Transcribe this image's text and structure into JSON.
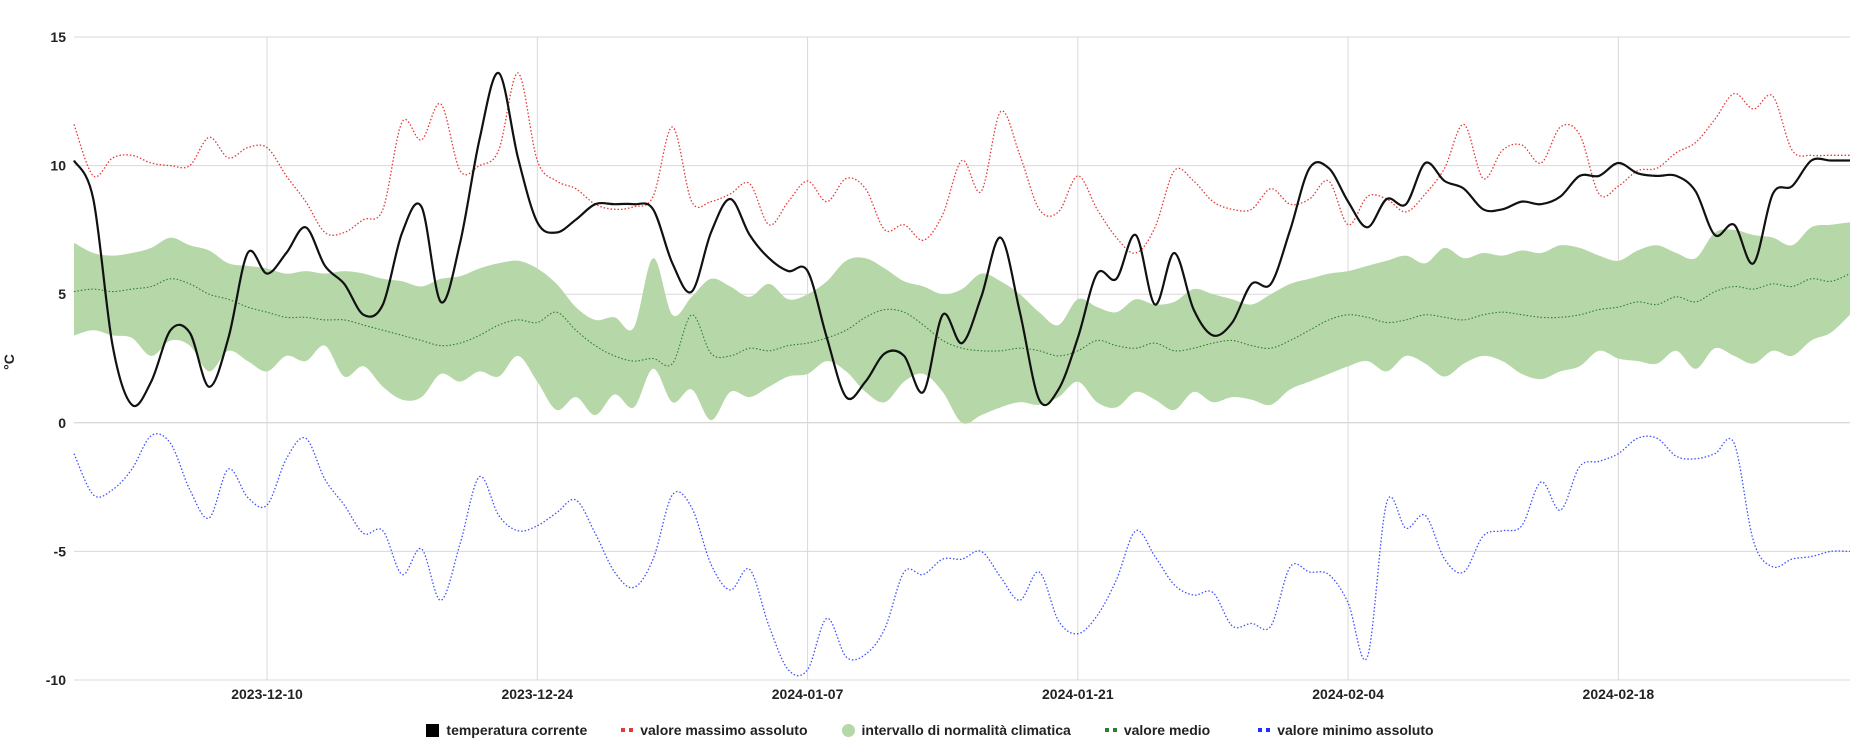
{
  "chart_data": {
    "type": "line",
    "title": "",
    "xlabel": "",
    "ylabel": "°C",
    "ylim": [
      -10,
      15
    ],
    "yticks": [
      -10,
      -5,
      0,
      5,
      10,
      15
    ],
    "ytick_labels": [
      "-10",
      "-5",
      "0",
      "5",
      "10",
      "15"
    ],
    "xlim": [
      "2023-11-30",
      "2024-03-01"
    ],
    "xticks": [
      "2023-12-10",
      "2023-12-24",
      "2024-01-07",
      "2024-01-21",
      "2024-02-04",
      "2024-02-18"
    ],
    "grid": true,
    "legend_position": "bottom",
    "x": [
      "2023-11-30",
      "2023-12-01",
      "2023-12-02",
      "2023-12-03",
      "2023-12-04",
      "2023-12-05",
      "2023-12-06",
      "2023-12-07",
      "2023-12-08",
      "2023-12-09",
      "2023-12-10",
      "2023-12-11",
      "2023-12-12",
      "2023-12-13",
      "2023-12-14",
      "2023-12-15",
      "2023-12-16",
      "2023-12-17",
      "2023-12-18",
      "2023-12-19",
      "2023-12-20",
      "2023-12-21",
      "2023-12-22",
      "2023-12-23",
      "2023-12-24",
      "2023-12-25",
      "2023-12-26",
      "2023-12-27",
      "2023-12-28",
      "2023-12-29",
      "2023-12-30",
      "2023-12-31",
      "2024-01-01",
      "2024-01-02",
      "2024-01-03",
      "2024-01-04",
      "2024-01-05",
      "2024-01-06",
      "2024-01-07",
      "2024-01-08",
      "2024-01-09",
      "2024-01-10",
      "2024-01-11",
      "2024-01-12",
      "2024-01-13",
      "2024-01-14",
      "2024-01-15",
      "2024-01-16",
      "2024-01-17",
      "2024-01-18",
      "2024-01-19",
      "2024-01-20",
      "2024-01-21",
      "2024-01-22",
      "2024-01-23",
      "2024-01-24",
      "2024-01-25",
      "2024-01-26",
      "2024-01-27",
      "2024-01-28",
      "2024-01-29",
      "2024-01-30",
      "2024-01-31",
      "2024-02-01",
      "2024-02-02",
      "2024-02-03",
      "2024-02-04",
      "2024-02-05",
      "2024-02-06",
      "2024-02-07",
      "2024-02-08",
      "2024-02-09",
      "2024-02-10",
      "2024-02-11",
      "2024-02-12",
      "2024-02-13",
      "2024-02-14",
      "2024-02-15",
      "2024-02-16",
      "2024-02-17",
      "2024-02-18",
      "2024-02-19",
      "2024-02-20",
      "2024-02-21",
      "2024-02-22",
      "2024-02-23",
      "2024-02-24",
      "2024-02-25",
      "2024-02-26",
      "2024-02-27",
      "2024-02-28",
      "2024-02-29",
      "2024-03-01"
    ],
    "series": [
      {
        "name": "intervallo di normalità climatica",
        "style": "band",
        "color": "#b6d7a8",
        "low": [
          3.4,
          3.6,
          3.4,
          3.3,
          2.6,
          3.2,
          3.0,
          2.0,
          2.8,
          2.4,
          2.0,
          2.6,
          2.4,
          3.0,
          1.8,
          2.2,
          1.4,
          0.9,
          1.0,
          1.9,
          1.6,
          2.0,
          1.8,
          2.6,
          1.6,
          0.5,
          1.0,
          0.3,
          1.1,
          0.6,
          2.1,
          0.8,
          1.3,
          0.1,
          1.2,
          1.0,
          1.4,
          1.8,
          1.9,
          2.4,
          2.0,
          1.2,
          0.8,
          1.6,
          1.9,
          1.2,
          0.0,
          0.3,
          0.6,
          0.8,
          0.7,
          1.0,
          1.6,
          0.8,
          0.6,
          1.2,
          0.9,
          0.5,
          1.2,
          0.8,
          1.0,
          0.9,
          0.7,
          1.3,
          1.6,
          1.9,
          2.2,
          2.4,
          2.0,
          2.6,
          2.3,
          1.8,
          2.3,
          2.6,
          2.4,
          1.9,
          1.7,
          2.0,
          2.2,
          2.8,
          2.5,
          2.4,
          2.3,
          2.8,
          2.1,
          2.9,
          2.6,
          2.3,
          2.8,
          2.6,
          3.2,
          3.5,
          4.2
        ],
        "high": [
          7.0,
          6.6,
          6.5,
          6.6,
          6.8,
          7.2,
          6.9,
          6.7,
          6.2,
          6.1,
          6.0,
          5.8,
          5.9,
          5.8,
          5.9,
          5.8,
          5.6,
          5.5,
          5.3,
          5.6,
          5.7,
          6.0,
          6.2,
          6.3,
          6.0,
          5.4,
          4.5,
          4.0,
          4.1,
          3.7,
          6.4,
          4.2,
          4.9,
          5.6,
          5.3,
          4.9,
          5.4,
          4.8,
          5.0,
          5.5,
          6.3,
          6.4,
          6.0,
          5.5,
          5.3,
          5.0,
          5.2,
          5.8,
          5.5,
          5.0,
          4.3,
          3.8,
          4.8,
          4.5,
          4.3,
          4.8,
          4.6,
          4.7,
          5.2,
          5.0,
          4.8,
          4.6,
          5.0,
          5.4,
          5.6,
          5.8,
          5.9,
          6.1,
          6.3,
          6.5,
          6.2,
          6.8,
          6.4,
          6.6,
          6.5,
          6.7,
          6.6,
          6.9,
          6.8,
          6.5,
          6.3,
          6.7,
          6.9,
          6.6,
          6.4,
          7.4,
          7.5,
          7.3,
          7.2,
          6.9,
          7.6,
          7.7,
          7.8
        ],
        "mean": [
          5.1,
          5.2,
          5.1,
          5.2,
          5.3,
          5.6,
          5.4,
          5.0,
          4.8,
          4.5,
          4.3,
          4.1,
          4.1,
          4.0,
          4.0,
          3.8,
          3.6,
          3.4,
          3.2,
          3.0,
          3.1,
          3.4,
          3.8,
          4.0,
          3.9,
          4.3,
          3.6,
          3.0,
          2.6,
          2.4,
          2.5,
          2.3,
          4.2,
          2.7,
          2.6,
          2.9,
          2.8,
          3.0,
          3.1,
          3.3,
          3.6,
          4.1,
          4.4,
          4.3,
          3.8,
          3.2,
          2.9,
          2.8,
          2.8,
          2.9,
          2.8,
          2.6,
          2.8,
          3.2,
          3.0,
          2.9,
          3.1,
          2.8,
          2.9,
          3.1,
          3.2,
          3.0,
          2.9,
          3.2,
          3.6,
          4.0,
          4.2,
          4.1,
          3.9,
          4.0,
          4.2,
          4.1,
          4.0,
          4.2,
          4.3,
          4.2,
          4.1,
          4.1,
          4.2,
          4.4,
          4.5,
          4.7,
          4.6,
          4.9,
          4.7,
          5.1,
          5.3,
          5.2,
          5.4,
          5.3,
          5.6,
          5.5,
          5.8
        ]
      },
      {
        "name": "valore massimo assoluto",
        "style": "dotted",
        "color": "#e53935",
        "values": [
          11.6,
          9.6,
          10.3,
          10.4,
          10.1,
          10.0,
          10.0,
          11.1,
          10.3,
          10.7,
          10.7,
          9.6,
          8.6,
          7.4,
          7.4,
          7.9,
          8.3,
          11.7,
          11.0,
          12.4,
          9.8,
          10.0,
          10.6,
          13.6,
          10.2,
          9.4,
          9.1,
          8.5,
          8.3,
          8.4,
          8.8,
          11.5,
          8.6,
          8.6,
          8.9,
          9.3,
          7.7,
          8.6,
          9.4,
          8.6,
          9.5,
          9.1,
          7.5,
          7.7,
          7.1,
          8.1,
          10.2,
          9.0,
          12.1,
          10.4,
          8.3,
          8.2,
          9.6,
          8.3,
          7.2,
          6.6,
          7.6,
          9.8,
          9.4,
          8.6,
          8.3,
          8.3,
          9.1,
          8.5,
          8.7,
          9.4,
          7.7,
          8.8,
          8.7,
          8.2,
          8.9,
          9.9,
          11.6,
          9.5,
          10.6,
          10.8,
          10.1,
          11.5,
          11.2,
          8.9,
          9.2,
          9.8,
          9.9,
          10.5,
          10.9,
          11.8,
          12.8,
          12.2,
          12.7,
          10.6,
          10.4,
          10.4,
          10.4
        ]
      },
      {
        "name": "valore medio",
        "style": "dotted",
        "color": "#2e7d32",
        "values_ref": "series.0.mean"
      },
      {
        "name": "valore minimo assoluto",
        "style": "dotted",
        "color": "#3f51ff",
        "values": [
          -1.2,
          -2.8,
          -2.6,
          -1.8,
          -0.5,
          -0.8,
          -2.6,
          -3.7,
          -1.8,
          -2.9,
          -3.2,
          -1.4,
          -0.6,
          -2.2,
          -3.2,
          -4.3,
          -4.2,
          -5.9,
          -4.9,
          -6.9,
          -4.7,
          -2.1,
          -3.6,
          -4.2,
          -4.0,
          -3.5,
          -3.0,
          -4.3,
          -5.8,
          -6.4,
          -5.3,
          -2.8,
          -3.3,
          -5.5,
          -6.5,
          -5.7,
          -7.9,
          -9.6,
          -9.6,
          -7.6,
          -9.1,
          -9.0,
          -8.0,
          -5.8,
          -5.9,
          -5.3,
          -5.3,
          -5.0,
          -6.0,
          -6.9,
          -5.8,
          -7.7,
          -8.2,
          -7.5,
          -6.1,
          -4.2,
          -5.2,
          -6.3,
          -6.7,
          -6.6,
          -7.9,
          -7.8,
          -7.9,
          -5.6,
          -5.8,
          -5.9,
          -7.0,
          -9.1,
          -3.1,
          -4.1,
          -3.6,
          -5.3,
          -5.8,
          -4.4,
          -4.2,
          -4.0,
          -2.3,
          -3.4,
          -1.7,
          -1.5,
          -1.2,
          -0.6,
          -0.6,
          -1.3,
          -1.4,
          -1.2,
          -0.8,
          -4.6,
          -5.6,
          -5.3,
          -5.2,
          -5.0,
          -5.0
        ]
      },
      {
        "name": "temperatura corrente",
        "style": "solid",
        "color": "#111111",
        "values": [
          10.2,
          8.7,
          3.0,
          0.7,
          1.6,
          3.6,
          3.5,
          1.4,
          3.3,
          6.6,
          5.8,
          6.6,
          7.6,
          6.1,
          5.4,
          4.2,
          4.6,
          7.4,
          8.4,
          4.7,
          7.0,
          11.0,
          13.6,
          10.3,
          7.8,
          7.4,
          7.9,
          8.5,
          8.5,
          8.5,
          8.3,
          6.2,
          5.1,
          7.4,
          8.7,
          7.3,
          6.4,
          5.9,
          5.9,
          3.3,
          1.0,
          1.6,
          2.7,
          2.6,
          1.2,
          4.2,
          3.1,
          4.9,
          7.2,
          4.3,
          0.9,
          1.3,
          3.3,
          5.8,
          5.6,
          7.3,
          4.6,
          6.6,
          4.4,
          3.4,
          3.9,
          5.4,
          5.4,
          7.5,
          9.9,
          9.9,
          8.6,
          7.6,
          8.7,
          8.5,
          10.1,
          9.4,
          9.1,
          8.3,
          8.3,
          8.6,
          8.5,
          8.8,
          9.6,
          9.6,
          10.1,
          9.7,
          9.6,
          9.6,
          9.0,
          7.3,
          7.7,
          6.2,
          8.9,
          9.2,
          10.2,
          10.2,
          10.2
        ]
      }
    ],
    "legend": [
      {
        "label": "temperatura corrente",
        "marker": "square",
        "color": "#000000"
      },
      {
        "label": "valore massimo assoluto",
        "marker": "dots",
        "color": "#e53935"
      },
      {
        "label": "intervallo di normalità climatica",
        "marker": "circle",
        "color": "#b6d7a8"
      },
      {
        "label": "valore medio",
        "marker": "dots",
        "color": "#2e7d32"
      },
      {
        "label": "valore minimo assoluto",
        "marker": "dots",
        "color": "#1f2dff"
      }
    ]
  }
}
